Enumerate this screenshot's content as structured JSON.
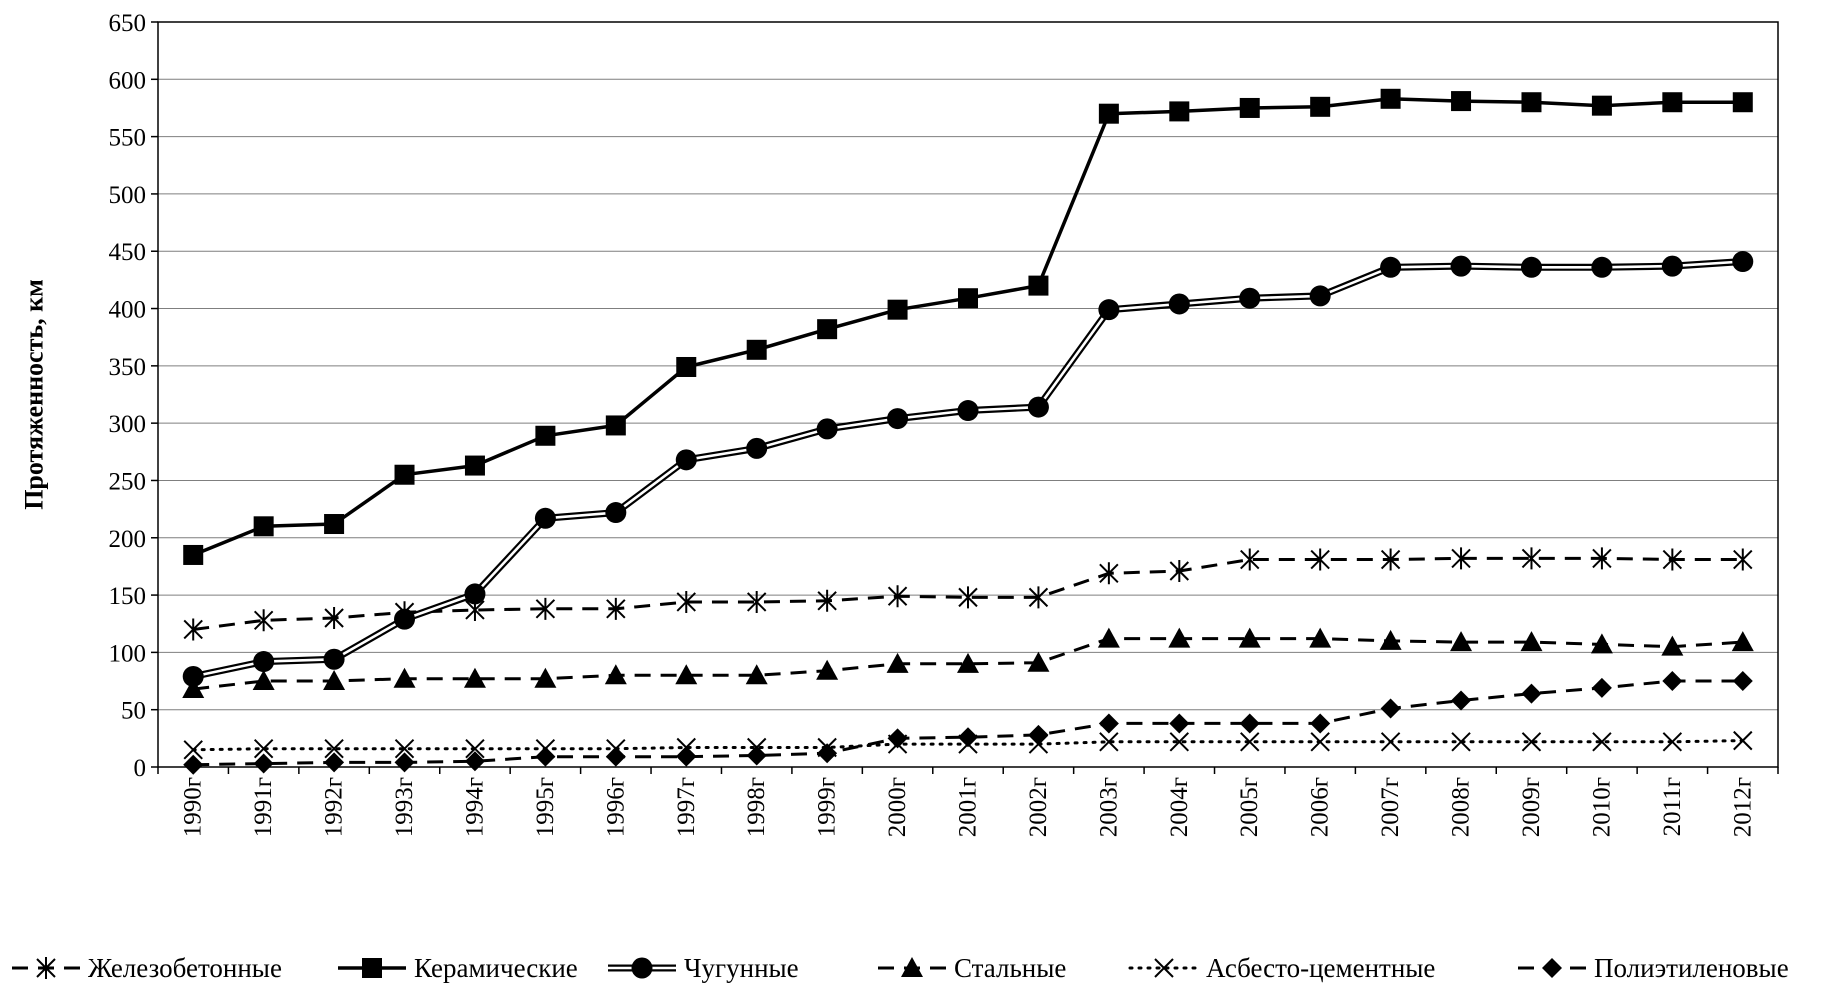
{
  "chart_data": {
    "type": "line",
    "title": "",
    "xlabel": "",
    "ylabel": "Протяженность, км",
    "ylim": [
      0,
      650
    ],
    "ytick_step": 50,
    "grid": "horizontal",
    "legend_position": "bottom",
    "categories": [
      "1990г",
      "1991г",
      "1992г",
      "1993г",
      "1994г",
      "1995г",
      "1996г",
      "1997г",
      "1998г",
      "1999г",
      "2000г",
      "2001г",
      "2002г",
      "2003г",
      "2004г",
      "2005г",
      "2006г",
      "2007г",
      "2008г",
      "2009г",
      "2010г",
      "2011г",
      "2012г"
    ],
    "y_ticks": [
      "0",
      "50",
      "100",
      "150",
      "200",
      "250",
      "300",
      "350",
      "400",
      "450",
      "500",
      "550",
      "600",
      "650"
    ],
    "series": [
      {
        "name": "Железобетонные",
        "line": "dash",
        "marker": "asterisk",
        "values": [
          120,
          128,
          130,
          135,
          137,
          138,
          138,
          144,
          144,
          145,
          149,
          148,
          148,
          169,
          171,
          181,
          181,
          181,
          182,
          182,
          182,
          181,
          181
        ]
      },
      {
        "name": "Керамические",
        "line": "solid",
        "marker": "square",
        "values": [
          185,
          210,
          212,
          255,
          263,
          289,
          298,
          349,
          364,
          382,
          399,
          409,
          420,
          570,
          572,
          575,
          576,
          583,
          581,
          580,
          577,
          580,
          580
        ]
      },
      {
        "name": "Чугунные",
        "line": "double",
        "marker": "circle",
        "values": [
          79,
          92,
          94,
          129,
          151,
          217,
          222,
          268,
          278,
          295,
          304,
          311,
          314,
          399,
          404,
          409,
          411,
          436,
          437,
          436,
          436,
          437,
          441
        ]
      },
      {
        "name": "Стальные",
        "line": "dash",
        "marker": "triangle",
        "values": [
          68,
          75,
          75,
          77,
          77,
          77,
          80,
          80,
          80,
          84,
          90,
          90,
          91,
          112,
          112,
          112,
          112,
          110,
          109,
          109,
          107,
          105,
          109
        ]
      },
      {
        "name": "Асбесто-цементные",
        "line": "dot",
        "marker": "x",
        "values": [
          15,
          16,
          16,
          16,
          16,
          16,
          16,
          17,
          17,
          17,
          20,
          20,
          20,
          22,
          22,
          22,
          22,
          22,
          22,
          22,
          22,
          22,
          23
        ]
      },
      {
        "name": "Полиэтиленовые",
        "line": "dash",
        "marker": "diamond",
        "values": [
          2,
          3,
          4,
          4,
          5,
          9,
          9,
          9,
          10,
          12,
          25,
          26,
          28,
          38,
          38,
          38,
          38,
          51,
          58,
          64,
          69,
          75,
          75
        ]
      }
    ]
  }
}
